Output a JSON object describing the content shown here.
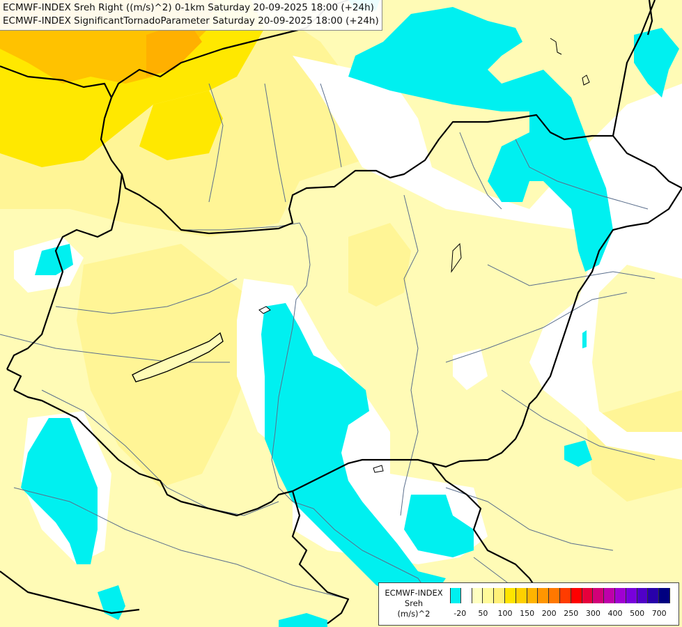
{
  "header": {
    "line1": "ECMWF-INDEX Sreh Right ((m/s)^2) 0-1km Saturday 20-09-2025 18:00 (+24h)",
    "line2": "ECMWF-INDEX SignificantTornadoParameter Saturday 20-09-2025 18:00 (+24h)"
  },
  "legend": {
    "line1": "ECMWF-INDEX",
    "line2": "Sreh",
    "line3": "(m/s)^2",
    "ticks": [
      "-20",
      "50",
      "100",
      "150",
      "200",
      "250",
      "300",
      "400",
      "500",
      "700"
    ],
    "colors": [
      "#00f0f0",
      "#ffffff",
      "#ffffc0",
      "#fffa9a",
      "#fff078",
      "#ffe400",
      "#ffd000",
      "#ffb400",
      "#ff9600",
      "#ff7800",
      "#ff3c00",
      "#ff0000",
      "#e6003c",
      "#d20078",
      "#be00aa",
      "#a000d2",
      "#7800dc",
      "#5000c8",
      "#2800aa",
      "#000080"
    ]
  },
  "map_colors": {
    "cyan": "#00f0f0",
    "white": "#ffffff",
    "pale_yellow": "#fffbb6",
    "light_yellow": "#fff596",
    "yellow": "#ffe800",
    "orange": "#ffc200",
    "border": "#000000",
    "river": "#5a6e8c"
  }
}
